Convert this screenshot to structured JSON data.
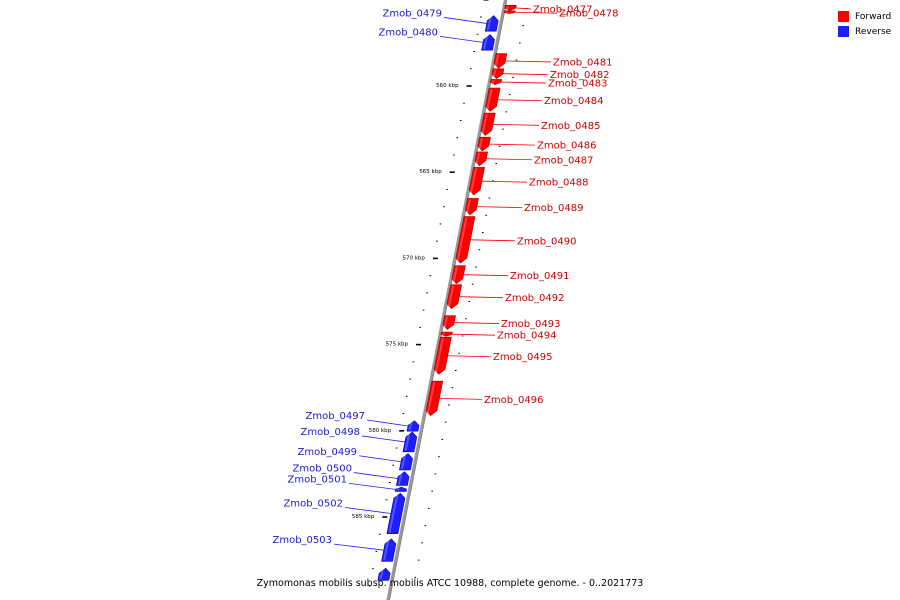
{
  "legend": {
    "forward_label": "Forward",
    "reverse_label": "Reverse",
    "forward_color": "#ff0000",
    "reverse_color": "#1e1eff"
  },
  "caption": "Zymomonas mobilis subsp. mobilis ATCC 10988, complete genome. - 0..2021773",
  "colors": {
    "backbone": "#999999",
    "tick": "#000000",
    "forward_label": "#cc0000",
    "reverse_label": "#1a1acc"
  },
  "chart_data": {
    "type": "genome-map",
    "position_unit": "kbp",
    "scale_labels": [
      {
        "kbp": 560,
        "label": "560 kbp"
      },
      {
        "kbp": 565,
        "label": "565 kbp"
      },
      {
        "kbp": 570,
        "label": "570 kbp"
      },
      {
        "kbp": 575,
        "label": "575 kbp"
      },
      {
        "kbp": 580,
        "label": "580 kbp"
      },
      {
        "kbp": 585,
        "label": "585 kbp"
      }
    ],
    "genes": [
      {
        "name": "Zmob_0477",
        "strand": "forward",
        "start": 555.35,
        "end": 555.65
      },
      {
        "name": "Zmob_0478",
        "strand": "forward",
        "start": 555.67,
        "end": 555.83
      },
      {
        "name": "Zmob_0479",
        "strand": "reverse",
        "start": 555.95,
        "end": 556.85
      },
      {
        "name": "Zmob_0480",
        "strand": "reverse",
        "start": 557.05,
        "end": 557.95
      },
      {
        "name": "Zmob_0481",
        "strand": "forward",
        "start": 558.15,
        "end": 559.0
      },
      {
        "name": "Zmob_0482",
        "strand": "forward",
        "start": 559.03,
        "end": 559.6
      },
      {
        "name": "Zmob_0483",
        "strand": "forward",
        "start": 559.65,
        "end": 559.95
      },
      {
        "name": "Zmob_0484",
        "strand": "forward",
        "start": 560.15,
        "end": 561.5
      },
      {
        "name": "Zmob_0485",
        "strand": "forward",
        "start": 561.6,
        "end": 562.9
      },
      {
        "name": "Zmob_0486",
        "strand": "forward",
        "start": 563.0,
        "end": 563.8
      },
      {
        "name": "Zmob_0487",
        "strand": "forward",
        "start": 563.85,
        "end": 564.65
      },
      {
        "name": "Zmob_0488",
        "strand": "forward",
        "start": 564.75,
        "end": 566.35
      },
      {
        "name": "Zmob_0489",
        "strand": "forward",
        "start": 566.55,
        "end": 567.5
      },
      {
        "name": "Zmob_0490",
        "strand": "forward",
        "start": 567.6,
        "end": 570.3
      },
      {
        "name": "Zmob_0491",
        "strand": "forward",
        "start": 570.45,
        "end": 571.5
      },
      {
        "name": "Zmob_0492",
        "strand": "forward",
        "start": 571.55,
        "end": 572.95
      },
      {
        "name": "Zmob_0493",
        "strand": "forward",
        "start": 573.35,
        "end": 574.15
      },
      {
        "name": "Zmob_0494",
        "strand": "forward",
        "start": 574.3,
        "end": 574.55
      },
      {
        "name": "Zmob_0495",
        "strand": "forward",
        "start": 574.6,
        "end": 576.75
      },
      {
        "name": "Zmob_0496",
        "strand": "forward",
        "start": 577.15,
        "end": 579.15
      },
      {
        "name": "Zmob_0497",
        "strand": "reverse",
        "start": 579.45,
        "end": 580.05
      },
      {
        "name": "Zmob_0498",
        "strand": "reverse",
        "start": 580.1,
        "end": 581.25
      },
      {
        "name": "Zmob_0499",
        "strand": "reverse",
        "start": 581.35,
        "end": 582.3
      },
      {
        "name": "Zmob_0500",
        "strand": "reverse",
        "start": 582.4,
        "end": 583.2
      },
      {
        "name": "Zmob_0501",
        "strand": "reverse",
        "start": 583.3,
        "end": 583.55
      },
      {
        "name": "Zmob_0502",
        "strand": "reverse",
        "start": 583.65,
        "end": 586.0
      },
      {
        "name": "Zmob_0503",
        "strand": "reverse",
        "start": 586.3,
        "end": 587.6
      },
      {
        "name": "",
        "strand": "reverse",
        "start": 588.0,
        "end": 588.7
      }
    ]
  }
}
